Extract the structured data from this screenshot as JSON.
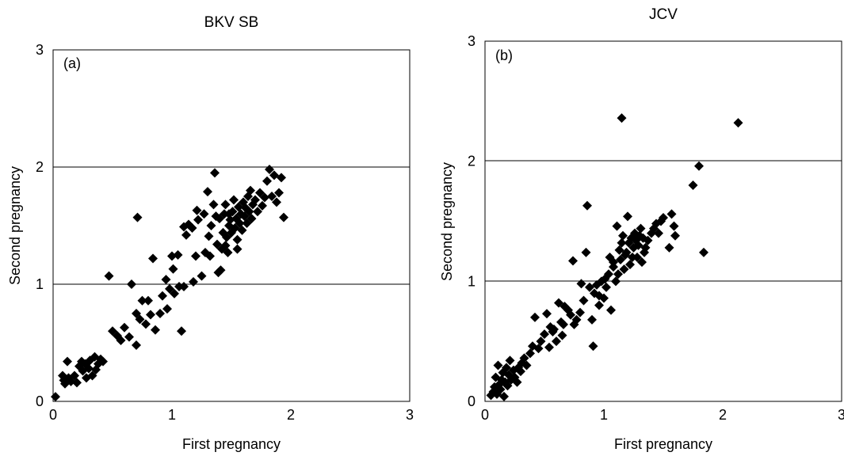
{
  "chart_data": [
    {
      "type": "scatter",
      "title": "BKV SB",
      "panel_label": "(a)",
      "xlabel": "First pregnancy",
      "ylabel": "Second pregnancy",
      "xlim": [
        0,
        3
      ],
      "ylim": [
        0,
        3
      ],
      "xticks": [
        "0",
        "1",
        "2",
        "3"
      ],
      "yticks": [
        "0",
        "1",
        "2",
        "3"
      ],
      "grid": "horizontal",
      "marker_color": "#000000",
      "points": [
        [
          0.02,
          0.04
        ],
        [
          0.08,
          0.22
        ],
        [
          0.09,
          0.18
        ],
        [
          0.1,
          0.15
        ],
        [
          0.12,
          0.34
        ],
        [
          0.13,
          0.2
        ],
        [
          0.15,
          0.17
        ],
        [
          0.18,
          0.22
        ],
        [
          0.2,
          0.16
        ],
        [
          0.22,
          0.3
        ],
        [
          0.24,
          0.34
        ],
        [
          0.25,
          0.26
        ],
        [
          0.27,
          0.32
        ],
        [
          0.28,
          0.2
        ],
        [
          0.3,
          0.28
        ],
        [
          0.31,
          0.35
        ],
        [
          0.33,
          0.22
        ],
        [
          0.35,
          0.38
        ],
        [
          0.36,
          0.27
        ],
        [
          0.38,
          0.32
        ],
        [
          0.4,
          0.36
        ],
        [
          0.42,
          0.34
        ],
        [
          0.47,
          1.07
        ],
        [
          0.5,
          0.6
        ],
        [
          0.54,
          0.56
        ],
        [
          0.57,
          0.52
        ],
        [
          0.6,
          0.63
        ],
        [
          0.64,
          0.55
        ],
        [
          0.66,
          1.0
        ],
        [
          0.7,
          0.48
        ],
        [
          0.7,
          0.75
        ],
        [
          0.71,
          1.57
        ],
        [
          0.73,
          0.7
        ],
        [
          0.75,
          0.86
        ],
        [
          0.78,
          0.66
        ],
        [
          0.8,
          0.86
        ],
        [
          0.82,
          0.74
        ],
        [
          0.84,
          1.22
        ],
        [
          0.86,
          0.61
        ],
        [
          0.9,
          0.75
        ],
        [
          0.92,
          0.9
        ],
        [
          0.95,
          1.04
        ],
        [
          0.96,
          0.79
        ],
        [
          0.98,
          0.96
        ],
        [
          1.0,
          1.24
        ],
        [
          1.01,
          1.13
        ],
        [
          1.02,
          0.92
        ],
        [
          1.05,
          1.25
        ],
        [
          1.06,
          0.98
        ],
        [
          1.08,
          0.6
        ],
        [
          1.1,
          0.98
        ],
        [
          1.1,
          1.49
        ],
        [
          1.12,
          1.42
        ],
        [
          1.14,
          1.51
        ],
        [
          1.17,
          1.48
        ],
        [
          1.18,
          1.02
        ],
        [
          1.2,
          1.24
        ],
        [
          1.21,
          1.63
        ],
        [
          1.22,
          1.55
        ],
        [
          1.25,
          1.07
        ],
        [
          1.27,
          1.6
        ],
        [
          1.28,
          1.27
        ],
        [
          1.3,
          1.79
        ],
        [
          1.31,
          1.41
        ],
        [
          1.32,
          1.24
        ],
        [
          1.33,
          1.5
        ],
        [
          1.35,
          1.68
        ],
        [
          1.36,
          1.95
        ],
        [
          1.37,
          1.58
        ],
        [
          1.38,
          1.34
        ],
        [
          1.4,
          1.56
        ],
        [
          1.41,
          1.12
        ],
        [
          1.42,
          1.3
        ],
        [
          1.43,
          1.44
        ],
        [
          1.44,
          1.6
        ],
        [
          1.45,
          1.68
        ],
        [
          1.46,
          1.4
        ],
        [
          1.47,
          1.27
        ],
        [
          1.48,
          1.5
        ],
        [
          1.49,
          1.55
        ],
        [
          1.5,
          1.44
        ],
        [
          1.51,
          1.62
        ],
        [
          1.52,
          1.72
        ],
        [
          1.53,
          1.48
        ],
        [
          1.54,
          1.56
        ],
        [
          1.55,
          1.38
        ],
        [
          1.56,
          1.66
        ],
        [
          1.57,
          1.52
        ],
        [
          1.58,
          1.6
        ],
        [
          1.59,
          1.46
        ],
        [
          1.6,
          1.7
        ],
        [
          1.61,
          1.58
        ],
        [
          1.62,
          1.65
        ],
        [
          1.63,
          1.52
        ],
        [
          1.64,
          1.75
        ],
        [
          1.65,
          1.62
        ],
        [
          1.66,
          1.8
        ],
        [
          1.67,
          1.56
        ],
        [
          1.68,
          1.68
        ],
        [
          1.7,
          1.72
        ],
        [
          1.72,
          1.62
        ],
        [
          1.74,
          1.78
        ],
        [
          1.76,
          1.67
        ],
        [
          1.78,
          1.74
        ],
        [
          1.8,
          1.88
        ],
        [
          1.82,
          1.98
        ],
        [
          1.84,
          1.75
        ],
        [
          1.86,
          1.93
        ],
        [
          1.88,
          1.7
        ],
        [
          1.9,
          1.78
        ],
        [
          1.92,
          1.91
        ],
        [
          1.94,
          1.57
        ],
        [
          1.39,
          1.1
        ],
        [
          1.45,
          1.33
        ],
        [
          1.55,
          1.3
        ],
        [
          1.48,
          1.6
        ]
      ]
    },
    {
      "type": "scatter",
      "title": "JCV",
      "panel_label": "(b)",
      "xlabel": "First pregnancy",
      "ylabel": "Second pregnancy",
      "xlim": [
        0,
        3
      ],
      "ylim": [
        0,
        3
      ],
      "xticks": [
        "0",
        "1",
        "2",
        "3"
      ],
      "yticks": [
        "0",
        "1",
        "2",
        "3"
      ],
      "grid": "horizontal",
      "marker_color": "#000000",
      "points": [
        [
          0.05,
          0.05
        ],
        [
          0.07,
          0.08
        ],
        [
          0.08,
          0.12
        ],
        [
          0.09,
          0.2
        ],
        [
          0.1,
          0.06
        ],
        [
          0.11,
          0.3
        ],
        [
          0.12,
          0.14
        ],
        [
          0.13,
          0.1
        ],
        [
          0.14,
          0.18
        ],
        [
          0.15,
          0.24
        ],
        [
          0.16,
          0.04
        ],
        [
          0.17,
          0.16
        ],
        [
          0.18,
          0.28
        ],
        [
          0.19,
          0.13
        ],
        [
          0.2,
          0.22
        ],
        [
          0.21,
          0.34
        ],
        [
          0.22,
          0.18
        ],
        [
          0.24,
          0.26
        ],
        [
          0.25,
          0.2
        ],
        [
          0.27,
          0.16
        ],
        [
          0.28,
          0.28
        ],
        [
          0.3,
          0.25
        ],
        [
          0.31,
          0.32
        ],
        [
          0.33,
          0.36
        ],
        [
          0.35,
          0.3
        ],
        [
          0.4,
          0.46
        ],
        [
          0.42,
          0.7
        ],
        [
          0.45,
          0.44
        ],
        [
          0.47,
          0.5
        ],
        [
          0.5,
          0.56
        ],
        [
          0.52,
          0.73
        ],
        [
          0.54,
          0.45
        ],
        [
          0.55,
          0.62
        ],
        [
          0.57,
          0.58
        ],
        [
          0.6,
          0.5
        ],
        [
          0.62,
          0.82
        ],
        [
          0.64,
          0.66
        ],
        [
          0.65,
          0.55
        ],
        [
          0.67,
          0.79
        ],
        [
          0.7,
          0.76
        ],
        [
          0.72,
          0.72
        ],
        [
          0.74,
          1.17
        ],
        [
          0.75,
          0.64
        ],
        [
          0.77,
          0.68
        ],
        [
          0.8,
          0.74
        ],
        [
          0.81,
          0.98
        ],
        [
          0.83,
          0.84
        ],
        [
          0.85,
          1.24
        ],
        [
          0.86,
          1.63
        ],
        [
          0.88,
          0.95
        ],
        [
          0.9,
          0.68
        ],
        [
          0.91,
          0.46
        ],
        [
          0.92,
          0.9
        ],
        [
          0.94,
          0.97
        ],
        [
          0.96,
          0.88
        ],
        [
          0.98,
          1.0
        ],
        [
          1.0,
          0.86
        ],
        [
          1.01,
          1.02
        ],
        [
          1.02,
          0.95
        ],
        [
          1.04,
          1.06
        ],
        [
          1.05,
          1.2
        ],
        [
          1.06,
          0.76
        ],
        [
          1.08,
          1.12
        ],
        [
          1.1,
          1.0
        ],
        [
          1.11,
          1.46
        ],
        [
          1.12,
          1.06
        ],
        [
          1.13,
          1.26
        ],
        [
          1.14,
          1.18
        ],
        [
          1.15,
          2.36
        ],
        [
          1.16,
          1.38
        ],
        [
          1.17,
          1.1
        ],
        [
          1.18,
          1.22
        ],
        [
          1.19,
          1.24
        ],
        [
          1.2,
          1.54
        ],
        [
          1.21,
          1.32
        ],
        [
          1.22,
          1.14
        ],
        [
          1.23,
          1.36
        ],
        [
          1.24,
          1.2
        ],
        [
          1.25,
          1.28
        ],
        [
          1.26,
          1.4
        ],
        [
          1.27,
          1.34
        ],
        [
          1.28,
          1.2
        ],
        [
          1.29,
          1.3
        ],
        [
          1.3,
          1.38
        ],
        [
          1.31,
          1.44
        ],
        [
          1.32,
          1.16
        ],
        [
          1.33,
          1.36
        ],
        [
          1.34,
          1.24
        ],
        [
          1.35,
          1.28
        ],
        [
          1.37,
          1.34
        ],
        [
          1.4,
          1.4
        ],
        [
          1.42,
          1.44
        ],
        [
          1.44,
          1.48
        ],
        [
          1.46,
          1.4
        ],
        [
          1.48,
          1.5
        ],
        [
          1.5,
          1.53
        ],
        [
          1.55,
          1.28
        ],
        [
          1.57,
          1.56
        ],
        [
          1.59,
          1.46
        ],
        [
          1.6,
          1.38
        ],
        [
          1.75,
          1.8
        ],
        [
          1.8,
          1.96
        ],
        [
          1.84,
          1.24
        ],
        [
          2.13,
          2.32
        ],
        [
          0.38,
          0.4
        ],
        [
          0.58,
          0.6
        ],
        [
          0.66,
          0.64
        ],
        [
          0.96,
          0.8
        ],
        [
          1.08,
          1.16
        ],
        [
          1.15,
          1.32
        ]
      ]
    }
  ]
}
